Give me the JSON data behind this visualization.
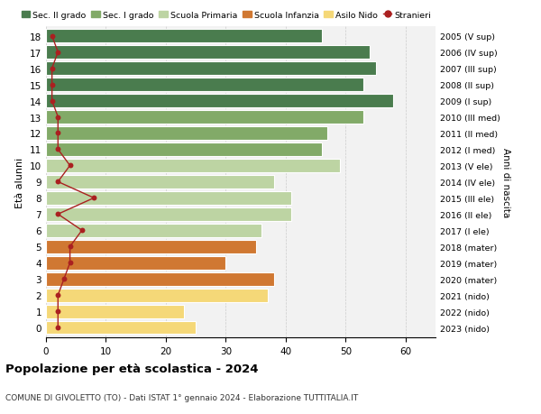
{
  "ages": [
    18,
    17,
    16,
    15,
    14,
    13,
    12,
    11,
    10,
    9,
    8,
    7,
    6,
    5,
    4,
    3,
    2,
    1,
    0
  ],
  "values": [
    46,
    54,
    55,
    53,
    58,
    53,
    47,
    46,
    49,
    38,
    41,
    41,
    36,
    35,
    30,
    38,
    37,
    23,
    25
  ],
  "stranieri": [
    1,
    2,
    1,
    1,
    1,
    2,
    2,
    2,
    4,
    2,
    8,
    2,
    6,
    4,
    4,
    3,
    2,
    2,
    2
  ],
  "right_labels": [
    "2005 (V sup)",
    "2006 (IV sup)",
    "2007 (III sup)",
    "2008 (II sup)",
    "2009 (I sup)",
    "2010 (III med)",
    "2011 (II med)",
    "2012 (I med)",
    "2013 (V ele)",
    "2014 (IV ele)",
    "2015 (III ele)",
    "2016 (II ele)",
    "2017 (I ele)",
    "2018 (mater)",
    "2019 (mater)",
    "2020 (mater)",
    "2021 (nido)",
    "2022 (nido)",
    "2023 (nido)"
  ],
  "colors": {
    "sec2": "#4a7c4e",
    "sec1": "#82aa68",
    "primaria": "#bdd4a3",
    "infanzia": "#d07832",
    "nido": "#f5d878",
    "stranieri": "#aa2020"
  },
  "legend_labels": [
    "Sec. II grado",
    "Sec. I grado",
    "Scuola Primaria",
    "Scuola Infanzia",
    "Asilo Nido",
    "Stranieri"
  ],
  "title": "Popolazione per età scolastica - 2024",
  "subtitle": "COMUNE DI GIVOLETTO (TO) - Dati ISTAT 1° gennaio 2024 - Elaborazione TUTTITALIA.IT",
  "ylabel": "Età alunni",
  "right_ylabel": "Anni di nascita",
  "xlim": [
    0,
    65
  ],
  "xticks": [
    0,
    10,
    20,
    30,
    40,
    50,
    60
  ]
}
